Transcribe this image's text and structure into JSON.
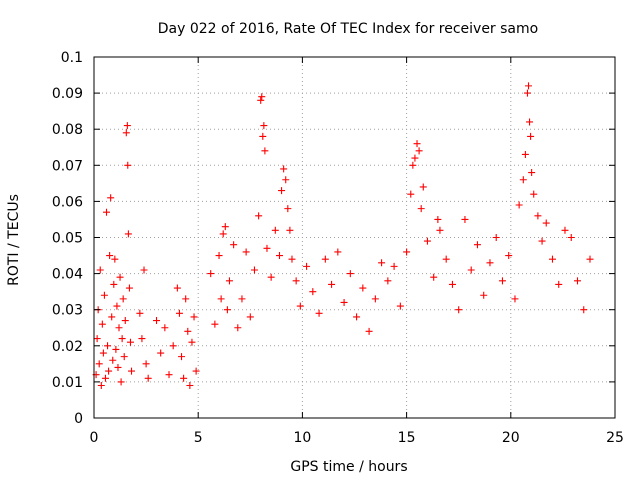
{
  "chart_data": {
    "type": "scatter",
    "title": "Day 022 of 2016, Rate Of TEC Index for receiver samo",
    "xlabel": "GPS time / hours",
    "ylabel": "ROTI / TECUs",
    "xlim": [
      0,
      25
    ],
    "ylim": [
      0,
      0.1
    ],
    "xticks": [
      0,
      5,
      10,
      15,
      20,
      25
    ],
    "xtick_labels": [
      "0",
      "5",
      "10",
      "15",
      "20",
      "25"
    ],
    "yticks": [
      0,
      0.01,
      0.02,
      0.03,
      0.04,
      0.05,
      0.06,
      0.07,
      0.08,
      0.09,
      0.1
    ],
    "ytick_labels": [
      "0",
      "0.01",
      "0.02",
      "0.03",
      "0.04",
      "0.05",
      "0.06",
      "0.07",
      "0.08",
      "0.09",
      "0.1"
    ],
    "grid": true,
    "marker": "+",
    "color": "#ff0000",
    "series": [
      {
        "points": [
          [
            0.1,
            0.012
          ],
          [
            0.15,
            0.022
          ],
          [
            0.2,
            0.03
          ],
          [
            0.25,
            0.015
          ],
          [
            0.3,
            0.041
          ],
          [
            0.35,
            0.009
          ],
          [
            0.4,
            0.026
          ],
          [
            0.45,
            0.018
          ],
          [
            0.5,
            0.034
          ],
          [
            0.55,
            0.011
          ],
          [
            0.6,
            0.057
          ],
          [
            0.65,
            0.02
          ],
          [
            0.7,
            0.013
          ],
          [
            0.75,
            0.045
          ],
          [
            0.8,
            0.061
          ],
          [
            0.85,
            0.028
          ],
          [
            0.9,
            0.016
          ],
          [
            0.95,
            0.037
          ],
          [
            1.0,
            0.044
          ],
          [
            1.05,
            0.019
          ],
          [
            1.1,
            0.031
          ],
          [
            1.15,
            0.014
          ],
          [
            1.2,
            0.025
          ],
          [
            1.25,
            0.039
          ],
          [
            1.3,
            0.01
          ],
          [
            1.35,
            0.022
          ],
          [
            1.4,
            0.033
          ],
          [
            1.45,
            0.017
          ],
          [
            1.5,
            0.027
          ],
          [
            1.55,
            0.079
          ],
          [
            1.6,
            0.081
          ],
          [
            1.62,
            0.07
          ],
          [
            1.65,
            0.051
          ],
          [
            1.7,
            0.036
          ],
          [
            1.75,
            0.021
          ],
          [
            1.8,
            0.013
          ],
          [
            2.2,
            0.029
          ],
          [
            2.3,
            0.022
          ],
          [
            2.4,
            0.041
          ],
          [
            2.5,
            0.015
          ],
          [
            2.6,
            0.011
          ],
          [
            3.0,
            0.027
          ],
          [
            3.2,
            0.018
          ],
          [
            3.4,
            0.025
          ],
          [
            3.6,
            0.012
          ],
          [
            3.8,
            0.02
          ],
          [
            4.0,
            0.036
          ],
          [
            4.1,
            0.029
          ],
          [
            4.2,
            0.017
          ],
          [
            4.3,
            0.011
          ],
          [
            4.4,
            0.033
          ],
          [
            4.5,
            0.024
          ],
          [
            4.6,
            0.009
          ],
          [
            4.7,
            0.021
          ],
          [
            4.8,
            0.028
          ],
          [
            4.9,
            0.013
          ],
          [
            5.6,
            0.04
          ],
          [
            5.8,
            0.026
          ],
          [
            6.0,
            0.045
          ],
          [
            6.1,
            0.033
          ],
          [
            6.2,
            0.051
          ],
          [
            6.3,
            0.053
          ],
          [
            6.4,
            0.03
          ],
          [
            6.5,
            0.038
          ],
          [
            6.7,
            0.048
          ],
          [
            6.9,
            0.025
          ],
          [
            7.1,
            0.033
          ],
          [
            7.3,
            0.046
          ],
          [
            7.5,
            0.028
          ],
          [
            7.7,
            0.041
          ],
          [
            7.9,
            0.056
          ],
          [
            8.0,
            0.088
          ],
          [
            8.05,
            0.089
          ],
          [
            8.1,
            0.078
          ],
          [
            8.15,
            0.081
          ],
          [
            8.2,
            0.074
          ],
          [
            8.3,
            0.047
          ],
          [
            8.5,
            0.039
          ],
          [
            8.7,
            0.052
          ],
          [
            8.9,
            0.045
          ],
          [
            9.0,
            0.063
          ],
          [
            9.1,
            0.069
          ],
          [
            9.2,
            0.066
          ],
          [
            9.3,
            0.058
          ],
          [
            9.4,
            0.052
          ],
          [
            9.5,
            0.044
          ],
          [
            9.7,
            0.038
          ],
          [
            9.9,
            0.031
          ],
          [
            10.2,
            0.042
          ],
          [
            10.5,
            0.035
          ],
          [
            10.8,
            0.029
          ],
          [
            11.1,
            0.044
          ],
          [
            11.4,
            0.037
          ],
          [
            11.7,
            0.046
          ],
          [
            12.0,
            0.032
          ],
          [
            12.3,
            0.04
          ],
          [
            12.6,
            0.028
          ],
          [
            12.9,
            0.036
          ],
          [
            13.2,
            0.024
          ],
          [
            13.5,
            0.033
          ],
          [
            13.8,
            0.043
          ],
          [
            14.1,
            0.038
          ],
          [
            14.4,
            0.042
          ],
          [
            14.7,
            0.031
          ],
          [
            15.0,
            0.046
          ],
          [
            15.2,
            0.062
          ],
          [
            15.3,
            0.07
          ],
          [
            15.4,
            0.072
          ],
          [
            15.5,
            0.076
          ],
          [
            15.6,
            0.074
          ],
          [
            15.7,
            0.058
          ],
          [
            15.8,
            0.064
          ],
          [
            16.0,
            0.049
          ],
          [
            16.3,
            0.039
          ],
          [
            16.5,
            0.055
          ],
          [
            16.6,
            0.052
          ],
          [
            16.9,
            0.044
          ],
          [
            17.2,
            0.037
          ],
          [
            17.5,
            0.03
          ],
          [
            17.8,
            0.055
          ],
          [
            18.1,
            0.041
          ],
          [
            18.4,
            0.048
          ],
          [
            18.7,
            0.034
          ],
          [
            19.0,
            0.043
          ],
          [
            19.3,
            0.05
          ],
          [
            19.6,
            0.038
          ],
          [
            19.9,
            0.045
          ],
          [
            20.2,
            0.033
          ],
          [
            20.4,
            0.059
          ],
          [
            20.6,
            0.066
          ],
          [
            20.7,
            0.073
          ],
          [
            20.8,
            0.09
          ],
          [
            20.85,
            0.092
          ],
          [
            20.9,
            0.082
          ],
          [
            20.95,
            0.078
          ],
          [
            21.0,
            0.068
          ],
          [
            21.1,
            0.062
          ],
          [
            21.3,
            0.056
          ],
          [
            21.5,
            0.049
          ],
          [
            21.7,
            0.054
          ],
          [
            22.0,
            0.044
          ],
          [
            22.3,
            0.037
          ],
          [
            22.6,
            0.052
          ],
          [
            22.9,
            0.05
          ],
          [
            23.2,
            0.038
          ],
          [
            23.5,
            0.03
          ],
          [
            23.8,
            0.044
          ]
        ]
      }
    ]
  }
}
